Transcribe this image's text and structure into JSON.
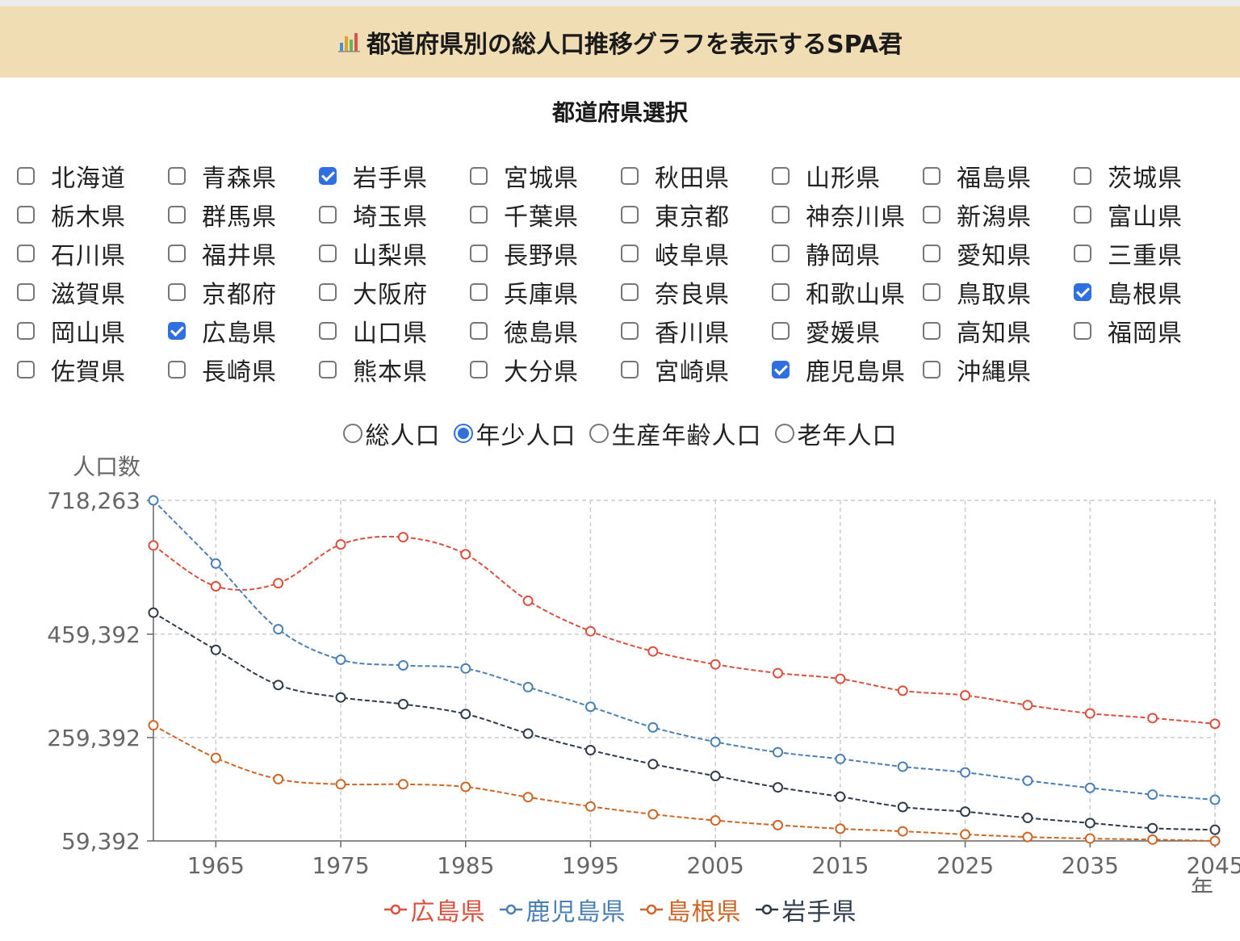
{
  "header": {
    "title": "都道府県別の総人口推移グラフを表示するSPA君",
    "icon": "bar-chart-icon"
  },
  "prefecture_section": {
    "title": "都道府県選択",
    "items": [
      {
        "label": "北海道",
        "checked": false
      },
      {
        "label": "青森県",
        "checked": false
      },
      {
        "label": "岩手県",
        "checked": true
      },
      {
        "label": "宮城県",
        "checked": false
      },
      {
        "label": "秋田県",
        "checked": false
      },
      {
        "label": "山形県",
        "checked": false
      },
      {
        "label": "福島県",
        "checked": false
      },
      {
        "label": "茨城県",
        "checked": false
      },
      {
        "label": "栃木県",
        "checked": false
      },
      {
        "label": "群馬県",
        "checked": false
      },
      {
        "label": "埼玉県",
        "checked": false
      },
      {
        "label": "千葉県",
        "checked": false
      },
      {
        "label": "東京都",
        "checked": false
      },
      {
        "label": "神奈川県",
        "checked": false
      },
      {
        "label": "新潟県",
        "checked": false
      },
      {
        "label": "富山県",
        "checked": false
      },
      {
        "label": "石川県",
        "checked": false
      },
      {
        "label": "福井県",
        "checked": false
      },
      {
        "label": "山梨県",
        "checked": false
      },
      {
        "label": "長野県",
        "checked": false
      },
      {
        "label": "岐阜県",
        "checked": false
      },
      {
        "label": "静岡県",
        "checked": false
      },
      {
        "label": "愛知県",
        "checked": false
      },
      {
        "label": "三重県",
        "checked": false
      },
      {
        "label": "滋賀県",
        "checked": false
      },
      {
        "label": "京都府",
        "checked": false
      },
      {
        "label": "大阪府",
        "checked": false
      },
      {
        "label": "兵庫県",
        "checked": false
      },
      {
        "label": "奈良県",
        "checked": false
      },
      {
        "label": "和歌山県",
        "checked": false
      },
      {
        "label": "鳥取県",
        "checked": false
      },
      {
        "label": "島根県",
        "checked": true
      },
      {
        "label": "岡山県",
        "checked": false
      },
      {
        "label": "広島県",
        "checked": true
      },
      {
        "label": "山口県",
        "checked": false
      },
      {
        "label": "徳島県",
        "checked": false
      },
      {
        "label": "香川県",
        "checked": false
      },
      {
        "label": "愛媛県",
        "checked": false
      },
      {
        "label": "高知県",
        "checked": false
      },
      {
        "label": "福岡県",
        "checked": false
      },
      {
        "label": "佐賀県",
        "checked": false
      },
      {
        "label": "長崎県",
        "checked": false
      },
      {
        "label": "熊本県",
        "checked": false
      },
      {
        "label": "大分県",
        "checked": false
      },
      {
        "label": "宮崎県",
        "checked": false
      },
      {
        "label": "鹿児島県",
        "checked": true
      },
      {
        "label": "沖縄県",
        "checked": false
      }
    ]
  },
  "population_type": {
    "options": [
      {
        "label": "総人口",
        "selected": false
      },
      {
        "label": "年少人口",
        "selected": true
      },
      {
        "label": "生産年齢人口",
        "selected": false
      },
      {
        "label": "老年人口",
        "selected": false
      }
    ]
  },
  "colors": {
    "grid": "#cccccc",
    "axis": "#666666",
    "tick_text": "#666666"
  },
  "chart_data": {
    "type": "line",
    "ylabel": "人口数",
    "xlabel": "年",
    "x": [
      1960,
      1965,
      1970,
      1975,
      1980,
      1985,
      1990,
      1995,
      2000,
      2005,
      2010,
      2015,
      2020,
      2025,
      2030,
      2035,
      2040,
      2045
    ],
    "xticks": [
      "1965",
      "1975",
      "1985",
      "1995",
      "2005",
      "2015",
      "2025",
      "2035",
      "2045"
    ],
    "yticks": [
      "59,392",
      "259,392",
      "459,392",
      "718,263"
    ],
    "ylim": [
      59392,
      718263
    ],
    "grid": true,
    "legend_position": "bottom",
    "series": [
      {
        "name": "広島県",
        "color": "#d9503f",
        "values": [
          631000,
          552000,
          558000,
          633000,
          647000,
          614000,
          524000,
          465000,
          426000,
          401000,
          384000,
          373000,
          350000,
          341000,
          322000,
          306000,
          297000,
          286000
        ]
      },
      {
        "name": "鹿児島県",
        "color": "#4a7fb5",
        "values": [
          718263,
          596000,
          469000,
          410000,
          399000,
          393000,
          357000,
          319000,
          279000,
          251000,
          231000,
          218000,
          203000,
          192000,
          176000,
          162000,
          149000,
          139000
        ]
      },
      {
        "name": "島根県",
        "color": "#cc6626",
        "values": [
          283000,
          220000,
          179000,
          169000,
          169000,
          164000,
          144000,
          126000,
          111000,
          99000,
          90000,
          83000,
          78000,
          72000,
          67000,
          64000,
          62000,
          59392
        ]
      },
      {
        "name": "岩手県",
        "color": "#2e3a4a",
        "values": [
          501000,
          429000,
          361000,
          337000,
          324000,
          305000,
          267000,
          235000,
          208000,
          185000,
          163000,
          145000,
          125000,
          116000,
          104000,
          94000,
          84000,
          81000
        ]
      }
    ]
  }
}
